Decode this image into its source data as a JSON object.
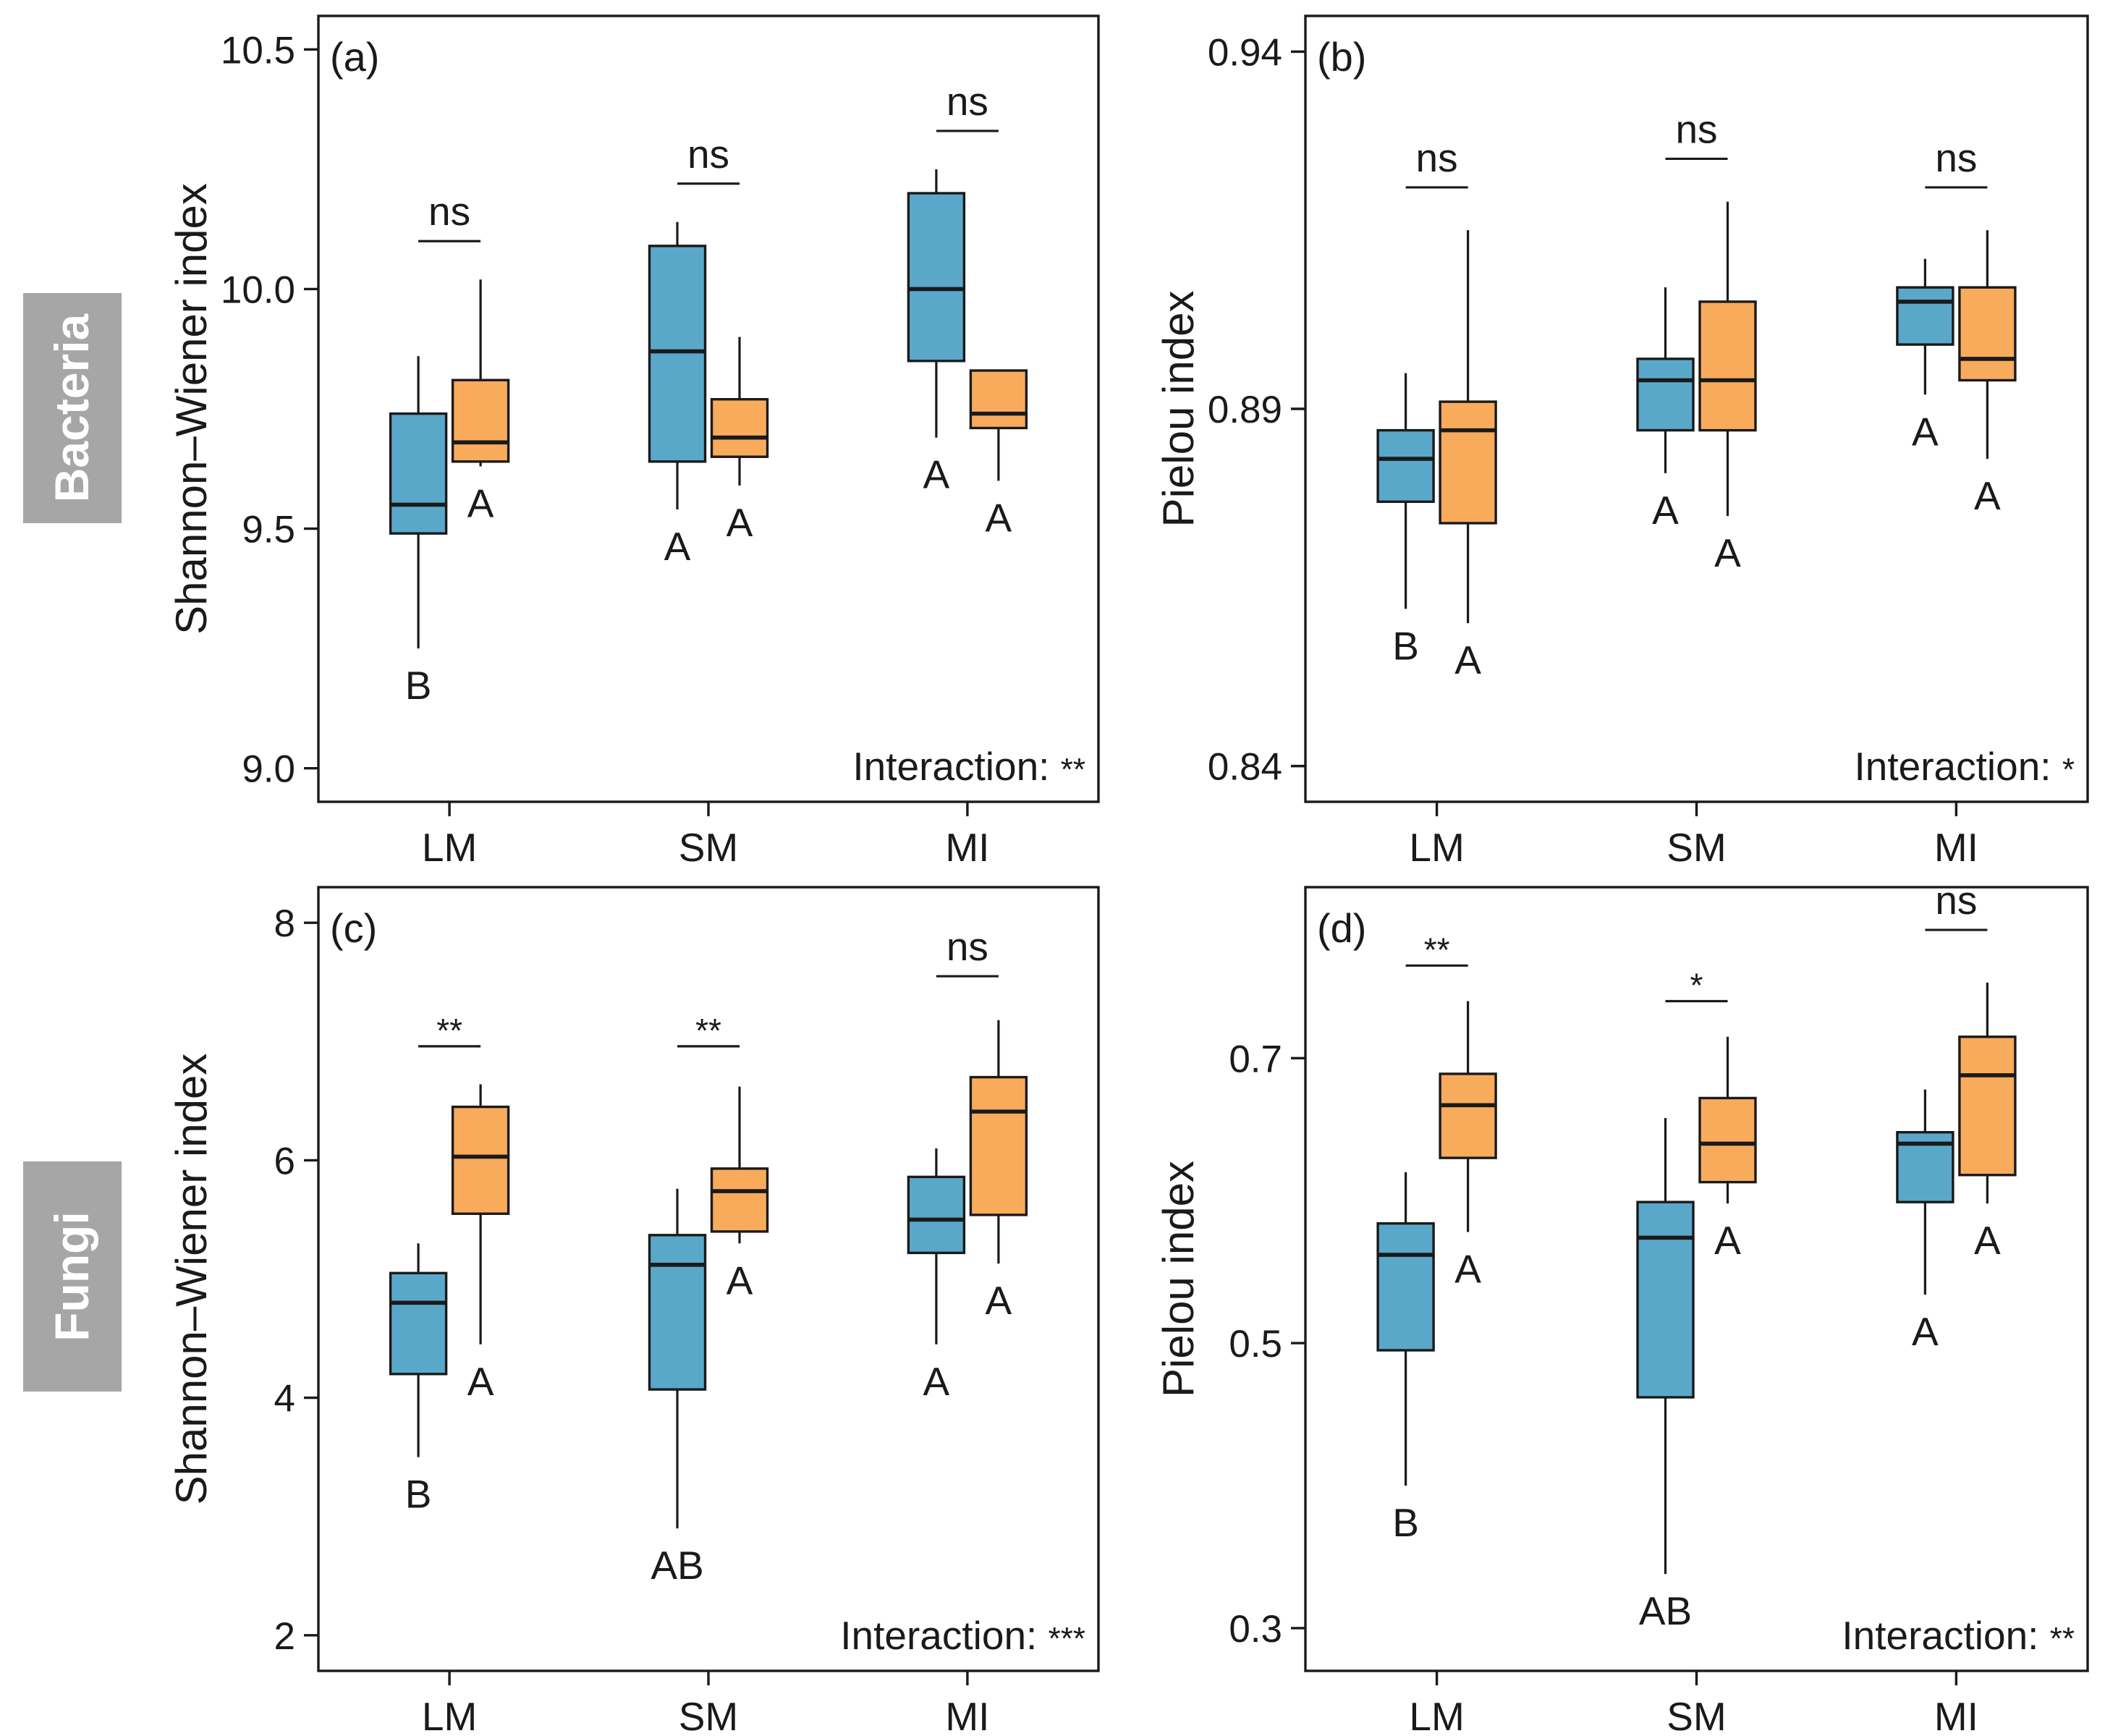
{
  "colors": {
    "group1": "#5aa8c9",
    "group2": "#f9ab5c",
    "row_label_bg": "#a6a6a6"
  },
  "row_labels": [
    "Bacteria",
    "Fungi"
  ],
  "chart_data": [
    {
      "type": "box",
      "panel_label": "(a)",
      "ylabel": "Shannon–Wiener index",
      "yticks": [
        9.0,
        9.5,
        10.0,
        10.5
      ],
      "ytick_labels": [
        "9.0",
        "9.5",
        "10.0",
        "10.5"
      ],
      "ylim": [
        8.93,
        10.57
      ],
      "categories": [
        "LM",
        "SM",
        "MI"
      ],
      "series": [
        {
          "name": "blue",
          "color": "#5aa8c9",
          "boxes": [
            {
              "min": 9.25,
              "q1": 9.49,
              "median": 9.55,
              "q3": 9.74,
              "max": 9.86
            },
            {
              "min": 9.54,
              "q1": 9.64,
              "median": 9.87,
              "q3": 10.09,
              "max": 10.14
            },
            {
              "min": 9.69,
              "q1": 9.85,
              "median": 10.0,
              "q3": 10.2,
              "max": 10.25
            }
          ]
        },
        {
          "name": "orange",
          "color": "#f9ab5c",
          "boxes": [
            {
              "min": 9.63,
              "q1": 9.64,
              "median": 9.68,
              "q3": 9.81,
              "max": 10.02
            },
            {
              "min": 9.59,
              "q1": 9.65,
              "median": 9.69,
              "q3": 9.77,
              "max": 9.9
            },
            {
              "min": 9.6,
              "q1": 9.71,
              "median": 9.74,
              "q3": 9.83,
              "max": 9.83
            }
          ]
        }
      ],
      "letters": [
        [
          "B",
          "A"
        ],
        [
          "A",
          "A"
        ],
        [
          "A",
          "A"
        ]
      ],
      "significance": [
        "ns",
        "ns",
        "ns"
      ],
      "bracket_y": [
        10.1,
        10.22,
        10.33
      ],
      "interaction_label": "Interaction:",
      "interaction_stars": "**"
    },
    {
      "type": "box",
      "panel_label": "(b)",
      "ylabel": "Pielou index",
      "yticks": [
        0.84,
        0.89,
        0.94
      ],
      "ytick_labels": [
        "0.84",
        "0.89",
        "0.94"
      ],
      "ylim": [
        0.835,
        0.945
      ],
      "categories": [
        "LM",
        "SM",
        "MI"
      ],
      "series": [
        {
          "name": "blue",
          "color": "#5aa8c9",
          "boxes": [
            {
              "min": 0.862,
              "q1": 0.877,
              "median": 0.883,
              "q3": 0.887,
              "max": 0.895
            },
            {
              "min": 0.881,
              "q1": 0.887,
              "median": 0.894,
              "q3": 0.897,
              "max": 0.907
            },
            {
              "min": 0.892,
              "q1": 0.899,
              "median": 0.905,
              "q3": 0.907,
              "max": 0.911
            }
          ]
        },
        {
          "name": "orange",
          "color": "#f9ab5c",
          "boxes": [
            {
              "min": 0.86,
              "q1": 0.874,
              "median": 0.887,
              "q3": 0.891,
              "max": 0.915
            },
            {
              "min": 0.875,
              "q1": 0.887,
              "median": 0.894,
              "q3": 0.905,
              "max": 0.919
            },
            {
              "min": 0.883,
              "q1": 0.894,
              "median": 0.897,
              "q3": 0.907,
              "max": 0.915
            }
          ]
        }
      ],
      "letters": [
        [
          "B",
          "A"
        ],
        [
          "A",
          "A"
        ],
        [
          "A",
          "A"
        ]
      ],
      "significance": [
        "ns",
        "ns",
        "ns"
      ],
      "bracket_y": [
        0.921,
        0.925,
        0.921
      ],
      "interaction_label": "Interaction:",
      "interaction_stars": "*"
    },
    {
      "type": "box",
      "panel_label": "(c)",
      "ylabel": "Shannon–Wiener index",
      "yticks": [
        2,
        4,
        6,
        8
      ],
      "ytick_labels": [
        "2",
        "4",
        "6",
        "8"
      ],
      "ylim": [
        1.7,
        8.3
      ],
      "categories": [
        "LM",
        "SM",
        "MI"
      ],
      "series": [
        {
          "name": "blue",
          "color": "#5aa8c9",
          "boxes": [
            {
              "min": 3.5,
              "q1": 4.2,
              "median": 4.8,
              "q3": 5.05,
              "max": 5.3
            },
            {
              "min": 2.9,
              "q1": 4.07,
              "median": 5.12,
              "q3": 5.37,
              "max": 5.76
            },
            {
              "min": 4.45,
              "q1": 5.22,
              "median": 5.5,
              "q3": 5.86,
              "max": 6.1
            }
          ]
        },
        {
          "name": "orange",
          "color": "#f9ab5c",
          "boxes": [
            {
              "min": 4.45,
              "q1": 5.55,
              "median": 6.03,
              "q3": 6.45,
              "max": 6.64
            },
            {
              "min": 5.3,
              "q1": 5.4,
              "median": 5.74,
              "q3": 5.93,
              "max": 6.62
            },
            {
              "min": 5.13,
              "q1": 5.54,
              "median": 6.41,
              "q3": 6.7,
              "max": 7.18
            }
          ]
        }
      ],
      "letters": [
        [
          "B",
          "A"
        ],
        [
          "AB",
          "A"
        ],
        [
          "A",
          "A"
        ]
      ],
      "significance": [
        "**",
        "**",
        "ns"
      ],
      "bracket_y": [
        6.96,
        6.96,
        7.55
      ],
      "interaction_label": "Interaction:",
      "interaction_stars": "***"
    },
    {
      "type": "box",
      "panel_label": "(d)",
      "ylabel": "Pielou index",
      "yticks": [
        0.3,
        0.5,
        0.7
      ],
      "ytick_labels": [
        "0.3",
        "0.5",
        "0.7"
      ],
      "ylim": [
        0.27,
        0.82
      ],
      "categories": [
        "LM",
        "SM",
        "MI"
      ],
      "series": [
        {
          "name": "blue",
          "color": "#5aa8c9",
          "boxes": [
            {
              "min": 0.4,
              "q1": 0.495,
              "median": 0.562,
              "q3": 0.584,
              "max": 0.62
            },
            {
              "min": 0.338,
              "q1": 0.462,
              "median": 0.574,
              "q3": 0.599,
              "max": 0.658
            },
            {
              "min": 0.534,
              "q1": 0.599,
              "median": 0.64,
              "q3": 0.648,
              "max": 0.678
            }
          ]
        },
        {
          "name": "orange",
          "color": "#f9ab5c",
          "boxes": [
            {
              "min": 0.578,
              "q1": 0.63,
              "median": 0.667,
              "q3": 0.689,
              "max": 0.74
            },
            {
              "min": 0.598,
              "q1": 0.613,
              "median": 0.64,
              "q3": 0.672,
              "max": 0.715
            },
            {
              "min": 0.598,
              "q1": 0.618,
              "median": 0.688,
              "q3": 0.715,
              "max": 0.753
            }
          ]
        }
      ],
      "letters": [
        [
          "B",
          "A"
        ],
        [
          "AB",
          "A"
        ],
        [
          "A",
          "A"
        ]
      ],
      "significance": [
        "**",
        "*",
        "ns"
      ],
      "bracket_y": [
        0.765,
        0.74,
        0.79
      ],
      "interaction_label": "Interaction:",
      "interaction_stars": "**"
    }
  ]
}
